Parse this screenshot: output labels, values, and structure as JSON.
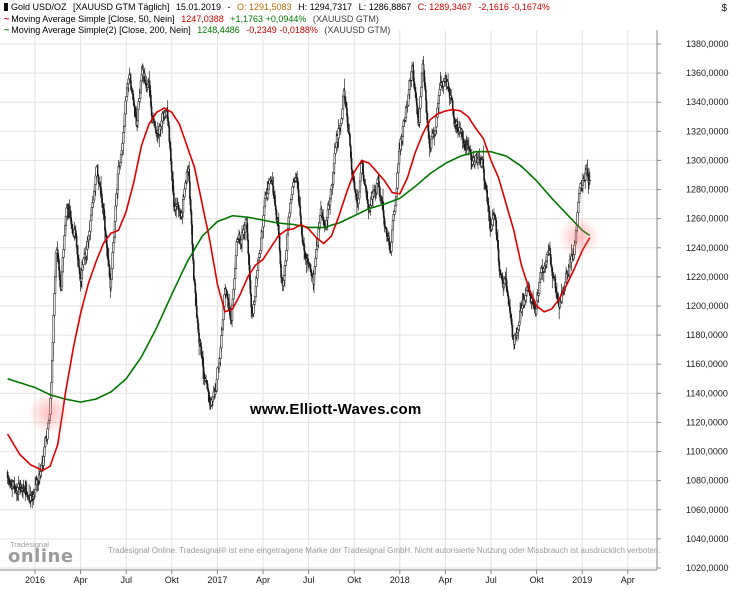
{
  "header": {
    "line1": {
      "title": "Gold USD/OZ",
      "params": "[XAUUSD GTM  Täglich]",
      "date": "15.01.2019",
      "sep": "-",
      "o_label": "O:",
      "o": "1291,5083",
      "h_label": "H:",
      "h": "1294,7317",
      "l_label": "L:",
      "l": "1286,8867",
      "c_label": "C:",
      "c": "1289,3467",
      "chg": "-2,1616",
      "chg_pct": "-0,1674%"
    },
    "line2": {
      "name": "Moving Average Simple [Close, 50, Nein]",
      "value": "1247,0388",
      "chg": "+1,1763",
      "chg_pct": "+0,0944%",
      "symbol": "(XAUUSD GTM)"
    },
    "line3": {
      "name": "Moving Average Simple(2) [Close, 200, Nein]",
      "value": "1248,4486",
      "chg": "-0,2349",
      "chg_pct": "-0,0188%",
      "symbol": "(XAUUSD GTM)"
    }
  },
  "watermark": "www.Elliott-Waves.com",
  "footer": {
    "logo_name": "Tradesignal",
    "logo_online": "online",
    "disclaimer": "Tradesignal Online. Tradesignal® ist eine eingetragene Marke der Tradesignal GmbH. Nicht autorisierte Nutzung oder Missbrauch ist ausdrücklich verboten."
  },
  "chart_data": {
    "type": "candlestick",
    "title": "Gold USD/OZ",
    "symbol": "XAUUSD GTM",
    "interval": "Täglich",
    "unit": "$",
    "ylim": [
      1020,
      1380
    ],
    "y_tick_step": 20,
    "y_tick_labels": [
      "1380,0000",
      "1360,0000",
      "1340,0000",
      "1320,0000",
      "1300,0000",
      "1280,0000",
      "1260,0000",
      "1240,0000",
      "1220,0000",
      "1200,0000",
      "1180,0000",
      "1160,0000",
      "1140,0000",
      "1120,0000",
      "1100,0000",
      "1080,0000",
      "1060,0000",
      "1040,0000",
      "1020,0000"
    ],
    "x_unit": "months_from_2016-01",
    "x_ticks": [
      {
        "m": 0,
        "label": "2016"
      },
      {
        "m": 3,
        "label": "Apr"
      },
      {
        "m": 6,
        "label": "Jul"
      },
      {
        "m": 9,
        "label": "Okt"
      },
      {
        "m": 12,
        "label": "2017"
      },
      {
        "m": 15,
        "label": "Apr"
      },
      {
        "m": 18,
        "label": "Jul"
      },
      {
        "m": 21,
        "label": "Okt"
      },
      {
        "m": 24,
        "label": "2018"
      },
      {
        "m": 27,
        "label": "Apr"
      },
      {
        "m": 30,
        "label": "Jul"
      },
      {
        "m": 33,
        "label": "Okt"
      },
      {
        "m": 36,
        "label": "2019"
      },
      {
        "m": 39,
        "label": "Apr"
      }
    ],
    "candles_close_anchors": [
      [
        -1.8,
        1086
      ],
      [
        -1.5,
        1082
      ],
      [
        -1.0,
        1070
      ],
      [
        -0.5,
        1062
      ],
      [
        0.0,
        1075
      ],
      [
        0.5,
        1090
      ],
      [
        1.0,
        1122
      ],
      [
        1.4,
        1245
      ],
      [
        1.7,
        1210
      ],
      [
        2.1,
        1262
      ],
      [
        2.6,
        1255
      ],
      [
        3.0,
        1222
      ],
      [
        3.6,
        1245
      ],
      [
        4.05,
        1292
      ],
      [
        4.55,
        1260
      ],
      [
        4.95,
        1212
      ],
      [
        5.5,
        1290
      ],
      [
        5.8,
        1318
      ],
      [
        6.2,
        1364
      ],
      [
        6.7,
        1322
      ],
      [
        7.05,
        1357
      ],
      [
        7.55,
        1346
      ],
      [
        8.0,
        1311
      ],
      [
        8.7,
        1337
      ],
      [
        9.15,
        1270
      ],
      [
        9.55,
        1262
      ],
      [
        10.1,
        1303
      ],
      [
        10.45,
        1224
      ],
      [
        10.8,
        1184
      ],
      [
        11.5,
        1128
      ],
      [
        11.8,
        1133
      ],
      [
        12.1,
        1160
      ],
      [
        12.5,
        1213
      ],
      [
        12.9,
        1192
      ],
      [
        13.3,
        1240
      ],
      [
        13.9,
        1255
      ],
      [
        14.3,
        1200
      ],
      [
        14.9,
        1255
      ],
      [
        15.45,
        1288
      ],
      [
        16.0,
        1255
      ],
      [
        16.3,
        1216
      ],
      [
        16.7,
        1262
      ],
      [
        17.2,
        1293
      ],
      [
        17.5,
        1254
      ],
      [
        18.3,
        1210
      ],
      [
        18.8,
        1254
      ],
      [
        19.25,
        1262
      ],
      [
        19.9,
        1310
      ],
      [
        20.3,
        1349
      ],
      [
        20.85,
        1295
      ],
      [
        21.2,
        1272
      ],
      [
        21.5,
        1302
      ],
      [
        21.9,
        1268
      ],
      [
        22.5,
        1288
      ],
      [
        23.4,
        1240
      ],
      [
        23.95,
        1303
      ],
      [
        24.8,
        1360
      ],
      [
        25.25,
        1315
      ],
      [
        25.5,
        1353
      ],
      [
        26.0,
        1305
      ],
      [
        26.85,
        1352
      ],
      [
        27.35,
        1348
      ],
      [
        27.75,
        1324
      ],
      [
        28.35,
        1320
      ],
      [
        28.7,
        1292
      ],
      [
        29.45,
        1300
      ],
      [
        29.95,
        1252
      ],
      [
        30.3,
        1258
      ],
      [
        30.6,
        1222
      ],
      [
        31.05,
        1215
      ],
      [
        31.5,
        1174
      ],
      [
        31.9,
        1201
      ],
      [
        32.5,
        1203
      ],
      [
        32.95,
        1192
      ],
      [
        33.35,
        1224
      ],
      [
        33.85,
        1233
      ],
      [
        34.45,
        1202
      ],
      [
        34.95,
        1222
      ],
      [
        35.45,
        1238
      ],
      [
        35.9,
        1281
      ],
      [
        36.1,
        1285
      ],
      [
        36.3,
        1292
      ],
      [
        36.5,
        1289.35
      ]
    ],
    "ma50": {
      "name": "Moving Average Simple",
      "period": 50,
      "color": "#dd0000",
      "anchors": [
        [
          -1.8,
          1112
        ],
        [
          -1,
          1098
        ],
        [
          -0.3,
          1091
        ],
        [
          0.5,
          1087
        ],
        [
          1,
          1090
        ],
        [
          1.5,
          1105
        ],
        [
          2,
          1140
        ],
        [
          2.5,
          1170
        ],
        [
          3,
          1195
        ],
        [
          3.5,
          1215
        ],
        [
          4,
          1230
        ],
        [
          4.5,
          1243
        ],
        [
          5,
          1250
        ],
        [
          5.5,
          1252
        ],
        [
          6,
          1265
        ],
        [
          6.5,
          1285
        ],
        [
          7,
          1310
        ],
        [
          7.5,
          1325
        ],
        [
          8,
          1333
        ],
        [
          8.5,
          1336
        ],
        [
          9,
          1333
        ],
        [
          9.5,
          1325
        ],
        [
          10,
          1310
        ],
        [
          10.5,
          1295
        ],
        [
          11,
          1270
        ],
        [
          11.5,
          1245
        ],
        [
          12,
          1215
        ],
        [
          12.5,
          1196
        ],
        [
          13,
          1198
        ],
        [
          13.5,
          1208
        ],
        [
          14,
          1220
        ],
        [
          14.5,
          1228
        ],
        [
          15,
          1232
        ],
        [
          15.5,
          1240
        ],
        [
          16,
          1248
        ],
        [
          16.5,
          1252
        ],
        [
          17,
          1253
        ],
        [
          17.5,
          1256
        ],
        [
          18,
          1253
        ],
        [
          18.5,
          1247
        ],
        [
          19,
          1243
        ],
        [
          19.5,
          1248
        ],
        [
          20,
          1262
        ],
        [
          20.5,
          1278
        ],
        [
          21,
          1292
        ],
        [
          21.5,
          1300
        ],
        [
          22,
          1298
        ],
        [
          22.5,
          1292
        ],
        [
          23,
          1286
        ],
        [
          23.5,
          1278
        ],
        [
          24,
          1277
        ],
        [
          24.5,
          1288
        ],
        [
          25,
          1305
        ],
        [
          25.5,
          1318
        ],
        [
          26,
          1328
        ],
        [
          26.5,
          1332
        ],
        [
          27,
          1334
        ],
        [
          27.5,
          1335
        ],
        [
          28,
          1334
        ],
        [
          28.5,
          1330
        ],
        [
          29,
          1322
        ],
        [
          29.5,
          1315
        ],
        [
          30,
          1300
        ],
        [
          30.5,
          1288
        ],
        [
          31,
          1270
        ],
        [
          31.5,
          1252
        ],
        [
          32,
          1228
        ],
        [
          32.5,
          1212
        ],
        [
          33,
          1200
        ],
        [
          33.5,
          1196
        ],
        [
          34,
          1198
        ],
        [
          34.5,
          1205
        ],
        [
          35,
          1215
        ],
        [
          35.5,
          1226
        ],
        [
          36,
          1238
        ],
        [
          36.5,
          1247.04
        ]
      ]
    },
    "ma200": {
      "name": "Moving Average Simple(2)",
      "period": 200,
      "color": "#007700",
      "anchors": [
        [
          -1.8,
          1150
        ],
        [
          0,
          1144
        ],
        [
          1,
          1139
        ],
        [
          2,
          1136
        ],
        [
          3,
          1134
        ],
        [
          4,
          1136
        ],
        [
          5,
          1141
        ],
        [
          6,
          1150
        ],
        [
          7,
          1165
        ],
        [
          8,
          1185
        ],
        [
          9,
          1208
        ],
        [
          10,
          1230
        ],
        [
          11,
          1248
        ],
        [
          12,
          1258
        ],
        [
          13,
          1262
        ],
        [
          14,
          1261
        ],
        [
          15,
          1259
        ],
        [
          16,
          1257
        ],
        [
          17,
          1256
        ],
        [
          18,
          1254
        ],
        [
          19,
          1254
        ],
        [
          20,
          1257
        ],
        [
          21,
          1262
        ],
        [
          22,
          1267
        ],
        [
          23,
          1270
        ],
        [
          24,
          1274
        ],
        [
          25,
          1282
        ],
        [
          26,
          1291
        ],
        [
          27,
          1298
        ],
        [
          28,
          1303
        ],
        [
          29,
          1306
        ],
        [
          30,
          1306
        ],
        [
          31,
          1303
        ],
        [
          32,
          1296
        ],
        [
          33,
          1286
        ],
        [
          34,
          1274
        ],
        [
          35,
          1263
        ],
        [
          36,
          1252
        ],
        [
          36.5,
          1248.45
        ]
      ]
    },
    "last_quote": {
      "date": "15.01.2019",
      "open": 1291.5083,
      "high": 1294.7317,
      "low": 1286.8867,
      "close": 1289.3467,
      "change": -2.1616,
      "change_pct": -0.1674
    }
  }
}
